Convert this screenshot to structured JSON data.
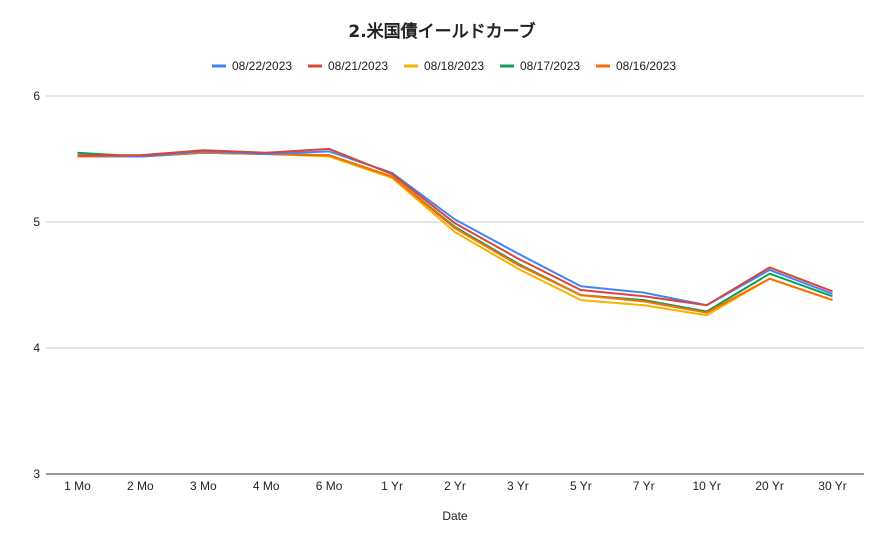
{
  "chart_data": {
    "type": "line",
    "title": "2.米国債イールドカーブ",
    "xlabel": "Date",
    "ylabel": "",
    "categories": [
      "1 Mo",
      "2 Mo",
      "3 Mo",
      "4 Mo",
      "6 Mo",
      "1 Yr",
      "2 Yr",
      "3 Yr",
      "5 Yr",
      "7 Yr",
      "10 Yr",
      "20 Yr",
      "30 Yr"
    ],
    "ylim": [
      3,
      6
    ],
    "yticks": [
      3,
      4,
      5,
      6
    ],
    "grid": true,
    "legend_position": "top",
    "series": [
      {
        "name": "08/22/2023",
        "color": "#4285F4",
        "values": [
          5.53,
          5.52,
          5.56,
          5.54,
          5.56,
          5.39,
          5.02,
          4.75,
          4.49,
          4.44,
          4.34,
          4.62,
          4.43
        ]
      },
      {
        "name": "08/21/2023",
        "color": "#DB4437",
        "values": [
          5.53,
          5.53,
          5.57,
          5.55,
          5.58,
          5.38,
          4.99,
          4.71,
          4.46,
          4.41,
          4.34,
          4.64,
          4.45
        ]
      },
      {
        "name": "08/18/2023",
        "color": "#F4B400",
        "values": [
          5.53,
          5.52,
          5.55,
          5.54,
          5.52,
          5.35,
          4.92,
          4.63,
          4.38,
          4.34,
          4.26,
          4.55,
          4.38
        ]
      },
      {
        "name": "08/17/2023",
        "color": "#0F9D58",
        "values": [
          5.55,
          5.52,
          5.55,
          5.54,
          5.53,
          5.36,
          4.96,
          4.67,
          4.42,
          4.38,
          4.29,
          4.59,
          4.41
        ]
      },
      {
        "name": "08/16/2023",
        "color": "#FF6D01",
        "values": [
          5.52,
          5.52,
          5.55,
          5.54,
          5.53,
          5.36,
          4.95,
          4.66,
          4.42,
          4.37,
          4.28,
          4.55,
          4.38
        ]
      }
    ]
  }
}
